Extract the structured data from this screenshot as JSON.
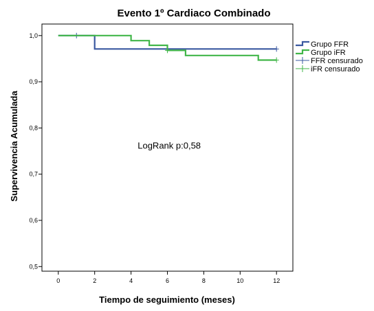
{
  "chart_data": {
    "type": "line",
    "step": true,
    "title": "Evento 1º Cardiaco Combinado",
    "xlabel": "Tiempo de seguimiento (meses)",
    "ylabel": "Supervivencia Acumulada",
    "xlim": [
      -0.9,
      12.9
    ],
    "ylim": [
      0.49,
      1.025
    ],
    "xticks": [
      0,
      2,
      4,
      6,
      8,
      10,
      12
    ],
    "xtick_labels": [
      "0",
      "2",
      "4",
      "6",
      "8",
      "10",
      "12"
    ],
    "yticks": [
      0.5,
      0.6,
      0.7,
      0.8,
      0.9,
      1.0
    ],
    "ytick_labels": [
      "0,5",
      "0,6",
      "0,7",
      "0,8",
      "0,9",
      "1,0"
    ],
    "grid": false,
    "legend_position": "right",
    "series": [
      {
        "name": "Grupo FFR",
        "color": "#3a58a0",
        "x": [
          0,
          2,
          12
        ],
        "y": [
          1.0,
          0.971,
          0.971
        ],
        "censored": [
          {
            "x": 1,
            "y": 1.0
          },
          {
            "x": 12,
            "y": 0.971
          }
        ],
        "censored_label": "FFR censurado"
      },
      {
        "name": "Grupo iFR",
        "color": "#41b649",
        "x": [
          0,
          4,
          5,
          6,
          7,
          11,
          12
        ],
        "y": [
          1.0,
          0.989,
          0.979,
          0.968,
          0.957,
          0.947,
          0.947
        ],
        "censored": [
          {
            "x": 6,
            "y": 0.968
          },
          {
            "x": 12,
            "y": 0.947
          }
        ],
        "censored_label": "iFR censurado"
      }
    ],
    "annotations": [
      {
        "text": "LogRank p:0,58",
        "x": 6.1,
        "y": 0.755
      }
    ]
  }
}
